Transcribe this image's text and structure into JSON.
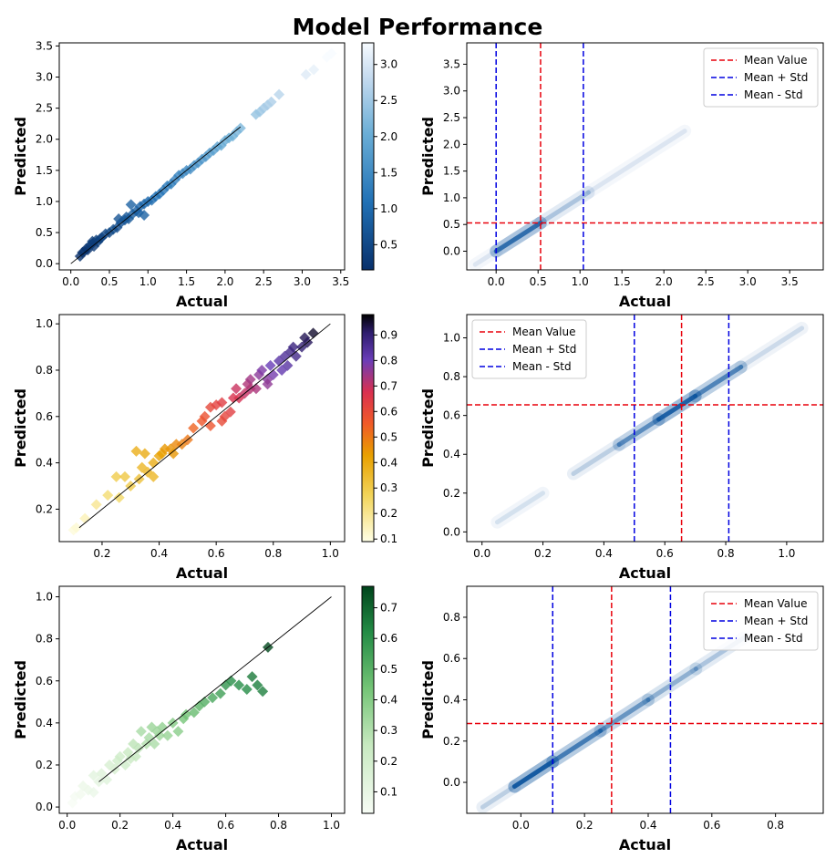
{
  "figure": {
    "title": "Model Performance"
  },
  "chart_data": [
    {
      "type": "scatter",
      "id": "scatter-1",
      "xlabel": "Actual",
      "ylabel": "Predicted",
      "xlim": [
        -0.15,
        3.55
      ],
      "ylim": [
        -0.1,
        3.55
      ],
      "xticks": [
        0.0,
        0.5,
        1.0,
        1.5,
        2.0,
        2.5,
        3.0,
        3.5
      ],
      "yticks": [
        0.0,
        0.5,
        1.0,
        1.5,
        2.0,
        2.5,
        3.0,
        3.5
      ],
      "colormap": "Blues_r",
      "colorbar": {
        "range": [
          0.15,
          3.3
        ],
        "ticks": [
          0.5,
          1.0,
          1.5,
          2.0,
          2.5,
          3.0
        ]
      },
      "marker": "diamond",
      "identity_line": [
        [
          0.0,
          0.0
        ],
        [
          2.2,
          2.2
        ]
      ],
      "points": {
        "x": [
          0.12,
          0.15,
          0.18,
          0.2,
          0.22,
          0.25,
          0.28,
          0.3,
          0.33,
          0.35,
          0.38,
          0.4,
          0.45,
          0.5,
          0.55,
          0.6,
          0.62,
          0.65,
          0.7,
          0.72,
          0.75,
          0.8,
          0.85,
          0.88,
          0.9,
          0.95,
          1.0,
          1.05,
          1.1,
          1.15,
          1.2,
          1.25,
          1.3,
          1.35,
          1.4,
          1.45,
          1.5,
          1.55,
          1.6,
          1.65,
          1.7,
          1.75,
          1.8,
          1.85,
          1.9,
          1.95,
          2.0,
          2.05,
          2.1,
          2.15,
          2.2,
          2.4,
          2.45,
          2.5,
          2.55,
          2.6,
          2.7,
          3.05,
          3.15,
          3.32,
          3.38,
          0.78,
          0.95,
          0.28
        ],
        "y": [
          0.12,
          0.18,
          0.2,
          0.24,
          0.22,
          0.3,
          0.32,
          0.28,
          0.38,
          0.35,
          0.4,
          0.42,
          0.48,
          0.5,
          0.55,
          0.58,
          0.72,
          0.66,
          0.7,
          0.75,
          0.72,
          0.8,
          0.85,
          0.82,
          0.92,
          0.96,
          1.0,
          1.02,
          1.08,
          1.12,
          1.18,
          1.25,
          1.28,
          1.35,
          1.42,
          1.45,
          1.5,
          1.52,
          1.58,
          1.62,
          1.68,
          1.72,
          1.78,
          1.82,
          1.88,
          1.9,
          1.98,
          2.02,
          2.05,
          2.12,
          2.18,
          2.4,
          2.44,
          2.5,
          2.55,
          2.6,
          2.72,
          3.04,
          3.12,
          3.32,
          3.38,
          0.95,
          0.78,
          0.36
        ]
      }
    },
    {
      "type": "density",
      "id": "density-1",
      "xlabel": "Actual",
      "ylabel": "Predicted",
      "xlim": [
        -0.35,
        3.9
      ],
      "ylim": [
        -0.35,
        3.9
      ],
      "xticks": [
        0.0,
        0.5,
        1.0,
        1.5,
        2.0,
        2.5,
        3.0,
        3.5
      ],
      "yticks": [
        0.0,
        0.5,
        1.0,
        1.5,
        2.0,
        2.5,
        3.0,
        3.5
      ],
      "mean": 0.53,
      "mean_plus_std": 1.04,
      "mean_minus_std": 0.0,
      "density_segments": [
        {
          "x0": -0.25,
          "x1": 0.0,
          "opacity": 0.1
        },
        {
          "x0": 0.0,
          "x1": 0.53,
          "opacity": 0.75
        },
        {
          "x0": 0.53,
          "x1": 1.1,
          "opacity": 0.25
        },
        {
          "x0": 1.1,
          "x1": 2.25,
          "opacity": 0.1
        }
      ],
      "legend": {
        "position": "top-right",
        "entries": [
          "Mean Value",
          "Mean + Std",
          "Mean - Std"
        ]
      }
    },
    {
      "type": "scatter",
      "id": "scatter-2",
      "xlabel": "Actual",
      "ylabel": "Predicted",
      "xlim": [
        0.05,
        1.05
      ],
      "ylim": [
        0.06,
        1.04
      ],
      "xticks": [
        0.2,
        0.4,
        0.6,
        0.8,
        1.0
      ],
      "yticks": [
        0.2,
        0.4,
        0.6,
        0.8,
        1.0
      ],
      "colormap": "CMRmap_r",
      "colorbar": {
        "range": [
          0.09,
          0.98
        ],
        "ticks": [
          0.1,
          0.2,
          0.3,
          0.4,
          0.5,
          0.6,
          0.7,
          0.8,
          0.9
        ]
      },
      "marker": "diamond",
      "identity_line": [
        [
          0.12,
          0.12
        ],
        [
          1.0,
          1.0
        ]
      ],
      "points": {
        "x": [
          0.1,
          0.11,
          0.14,
          0.18,
          0.22,
          0.25,
          0.26,
          0.28,
          0.3,
          0.32,
          0.33,
          0.35,
          0.36,
          0.38,
          0.38,
          0.4,
          0.41,
          0.42,
          0.44,
          0.46,
          0.48,
          0.5,
          0.52,
          0.55,
          0.56,
          0.58,
          0.58,
          0.6,
          0.62,
          0.63,
          0.65,
          0.67,
          0.68,
          0.7,
          0.71,
          0.72,
          0.74,
          0.75,
          0.76,
          0.78,
          0.79,
          0.8,
          0.82,
          0.83,
          0.84,
          0.85,
          0.86,
          0.87,
          0.88,
          0.9,
          0.91,
          0.92,
          0.94,
          0.62,
          0.66,
          0.78,
          0.72,
          0.45,
          0.34
        ],
        "y": [
          0.11,
          0.12,
          0.16,
          0.22,
          0.26,
          0.34,
          0.25,
          0.34,
          0.3,
          0.45,
          0.33,
          0.44,
          0.36,
          0.4,
          0.34,
          0.43,
          0.44,
          0.46,
          0.46,
          0.48,
          0.48,
          0.5,
          0.55,
          0.58,
          0.6,
          0.64,
          0.56,
          0.65,
          0.58,
          0.6,
          0.62,
          0.72,
          0.68,
          0.7,
          0.74,
          0.76,
          0.72,
          0.78,
          0.8,
          0.76,
          0.82,
          0.78,
          0.84,
          0.8,
          0.86,
          0.82,
          0.88,
          0.9,
          0.86,
          0.9,
          0.94,
          0.92,
          0.96,
          0.66,
          0.68,
          0.74,
          0.72,
          0.44,
          0.38
        ]
      }
    },
    {
      "type": "density",
      "id": "density-2",
      "xlabel": "Actual",
      "ylabel": "Predicted",
      "xlim": [
        -0.05,
        1.12
      ],
      "ylim": [
        -0.05,
        1.12
      ],
      "xticks": [
        0.0,
        0.2,
        0.4,
        0.6,
        0.8,
        1.0
      ],
      "yticks": [
        0.0,
        0.2,
        0.4,
        0.6,
        0.8,
        1.0
      ],
      "mean": 0.655,
      "mean_plus_std": 0.81,
      "mean_minus_std": 0.5,
      "density_segments": [
        {
          "x0": 0.05,
          "x1": 0.2,
          "opacity": 0.12
        },
        {
          "x0": 0.3,
          "x1": 0.45,
          "opacity": 0.2
        },
        {
          "x0": 0.45,
          "x1": 0.58,
          "opacity": 0.55
        },
        {
          "x0": 0.58,
          "x1": 0.7,
          "opacity": 0.85
        },
        {
          "x0": 0.7,
          "x1": 0.85,
          "opacity": 0.6
        },
        {
          "x0": 0.85,
          "x1": 1.05,
          "opacity": 0.15
        }
      ],
      "legend": {
        "position": "top-left",
        "entries": [
          "Mean Value",
          "Mean + Std",
          "Mean - Std"
        ]
      }
    },
    {
      "type": "scatter",
      "id": "scatter-3",
      "xlabel": "Actual",
      "ylabel": "Predicted",
      "xlim": [
        -0.03,
        1.05
      ],
      "ylim": [
        -0.03,
        1.05
      ],
      "xticks": [
        0.0,
        0.2,
        0.4,
        0.6,
        0.8,
        1.0
      ],
      "yticks": [
        0.0,
        0.2,
        0.4,
        0.6,
        0.8,
        1.0
      ],
      "colormap": "Greens",
      "colorbar": {
        "range": [
          0.03,
          0.77
        ],
        "ticks": [
          0.1,
          0.2,
          0.3,
          0.4,
          0.5,
          0.6,
          0.7
        ]
      },
      "marker": "diamond",
      "identity_line": [
        [
          0.12,
          0.12
        ],
        [
          1.0,
          1.0
        ]
      ],
      "points": {
        "x": [
          0.02,
          0.03,
          0.05,
          0.06,
          0.08,
          0.1,
          0.1,
          0.12,
          0.13,
          0.15,
          0.16,
          0.18,
          0.19,
          0.2,
          0.22,
          0.23,
          0.24,
          0.25,
          0.26,
          0.27,
          0.28,
          0.3,
          0.31,
          0.32,
          0.33,
          0.34,
          0.35,
          0.36,
          0.38,
          0.4,
          0.42,
          0.44,
          0.45,
          0.48,
          0.5,
          0.52,
          0.55,
          0.58,
          0.6,
          0.62,
          0.65,
          0.68,
          0.7,
          0.72,
          0.74,
          0.76
        ],
        "y": [
          0.02,
          0.05,
          0.06,
          0.1,
          0.08,
          0.15,
          0.07,
          0.12,
          0.16,
          0.13,
          0.2,
          0.18,
          0.22,
          0.24,
          0.2,
          0.26,
          0.23,
          0.3,
          0.24,
          0.28,
          0.36,
          0.3,
          0.33,
          0.38,
          0.3,
          0.36,
          0.34,
          0.38,
          0.34,
          0.4,
          0.36,
          0.42,
          0.44,
          0.45,
          0.48,
          0.5,
          0.52,
          0.54,
          0.58,
          0.6,
          0.58,
          0.56,
          0.62,
          0.58,
          0.55,
          0.76
        ]
      }
    },
    {
      "type": "density",
      "id": "density-3",
      "xlabel": "Actual",
      "ylabel": "Predicted",
      "xlim": [
        -0.17,
        0.95
      ],
      "ylim": [
        -0.15,
        0.95
      ],
      "xticks": [
        0.0,
        0.2,
        0.4,
        0.6,
        0.8
      ],
      "yticks": [
        0.0,
        0.2,
        0.4,
        0.6,
        0.8
      ],
      "mean": 0.285,
      "mean_plus_std": 0.47,
      "mean_minus_std": 0.1,
      "density_segments": [
        {
          "x0": -0.12,
          "x1": -0.02,
          "opacity": 0.2
        },
        {
          "x0": -0.02,
          "x1": 0.1,
          "opacity": 0.9
        },
        {
          "x0": 0.1,
          "x1": 0.25,
          "opacity": 0.65
        },
        {
          "x0": 0.25,
          "x1": 0.4,
          "opacity": 0.5
        },
        {
          "x0": 0.4,
          "x1": 0.55,
          "opacity": 0.35
        },
        {
          "x0": 0.55,
          "x1": 0.7,
          "opacity": 0.25
        }
      ],
      "legend": {
        "position": "top-right",
        "entries": [
          "Mean Value",
          "Mean + Std",
          "Mean - Std"
        ]
      }
    }
  ]
}
